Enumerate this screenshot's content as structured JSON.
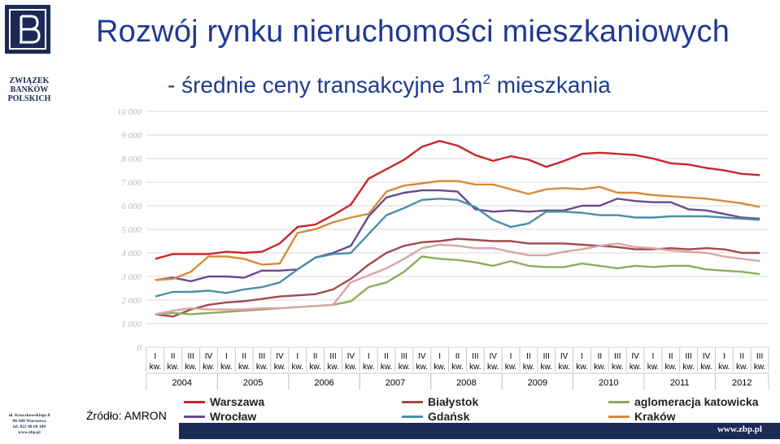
{
  "header": {
    "title": "Rozwój rynku nieruchomości mieszkaniowych",
    "subtitle_pre": "- średnie ceny transakcyjne 1m",
    "subtitle_sup": "2",
    "subtitle_post": " mieszkania"
  },
  "sidebar": {
    "org_lines": [
      "ZWIĄZEK",
      "BANKÓW",
      "POLSKICH"
    ],
    "address_lines": [
      "ul. Kruczkowskiego 8",
      "00-380 Warszawa",
      "tel. 022 48 68 180",
      "www.zbp.pl"
    ]
  },
  "source": "Źródło: AMRON",
  "footer": {
    "url": "www.zbp.pl"
  },
  "colors": {
    "brand": "#1b2a55",
    "title": "#1f3a93"
  },
  "chart_data": {
    "type": "line",
    "ylim": [
      0,
      10000
    ],
    "yticks": [
      0,
      1000,
      2000,
      3000,
      4000,
      5000,
      6000,
      7000,
      8000,
      9000,
      10000
    ],
    "ytick_labels": [
      "0",
      "1 000",
      "2 000",
      "3 000",
      "4 000",
      "5 000",
      "6 000",
      "7 000",
      "8 000",
      "9 000",
      "10 000"
    ],
    "grid": true,
    "legend_position": "bottom",
    "x_quarters": [
      "I kw.",
      "II kw.",
      "III kw.",
      "IV kw.",
      "I kw.",
      "II kw.",
      "III kw.",
      "IV kw.",
      "I kw.",
      "II kw.",
      "III kw.",
      "IV kw.",
      "I kw.",
      "II kw.",
      "III kw.",
      "IV kw.",
      "I kw.",
      "II kw.",
      "III kw.",
      "IV kw.",
      "I kw.",
      "II kw.",
      "III kw.",
      "IV kw.",
      "I kw.",
      "II kw.",
      "III kw.",
      "IV kw.",
      "I kw.",
      "II kw.",
      "III kw.",
      "IV kw.",
      "I kw.",
      "II kw.",
      "III kw."
    ],
    "years": [
      {
        "label": "2004",
        "start": 0,
        "count": 4
      },
      {
        "label": "2005",
        "start": 4,
        "count": 4
      },
      {
        "label": "2006",
        "start": 8,
        "count": 4
      },
      {
        "label": "2007",
        "start": 12,
        "count": 4
      },
      {
        "label": "2008",
        "start": 16,
        "count": 4
      },
      {
        "label": "2009",
        "start": 20,
        "count": 4
      },
      {
        "label": "2010",
        "start": 24,
        "count": 4
      },
      {
        "label": "2011",
        "start": 28,
        "count": 4
      },
      {
        "label": "2012",
        "start": 32,
        "count": 3
      }
    ],
    "series": [
      {
        "name": "Warszawa",
        "color": "#c8262c",
        "values": [
          3750,
          3950,
          3950,
          3950,
          4050,
          4000,
          4050,
          4400,
          5100,
          5200,
          5600,
          6050,
          7150,
          7550,
          7950,
          8500,
          8750,
          8550,
          8150,
          7900,
          8100,
          7950,
          7650,
          7900,
          8200,
          8250,
          8200,
          8150,
          8000,
          7800,
          7750,
          7600,
          7500,
          7350,
          7300
        ]
      },
      {
        "name": "Wrocław",
        "color": "#6b4a8e",
        "values": [
          2850,
          2950,
          2800,
          3000,
          3000,
          2950,
          3250,
          3250,
          3300,
          3800,
          4000,
          4300,
          5550,
          6350,
          6550,
          6650,
          6650,
          6600,
          5850,
          5750,
          5800,
          5750,
          5800,
          5800,
          6000,
          6000,
          6300,
          6200,
          6150,
          6150,
          5850,
          5800,
          5650,
          5500,
          5450
        ]
      },
      {
        "name": "Białystok",
        "color": "#a24a4a",
        "values": [
          1400,
          1300,
          1600,
          1800,
          1900,
          1950,
          2050,
          2150,
          2200,
          2250,
          2450,
          2900,
          3500,
          4000,
          4300,
          4450,
          4500,
          4600,
          4550,
          4500,
          4500,
          4400,
          4400,
          4400,
          4350,
          4300,
          4250,
          4150,
          4150,
          4200,
          4150,
          4200,
          4150,
          4000,
          4000
        ]
      },
      {
        "name": "Gdańsk",
        "color": "#4a8ea8",
        "values": [
          2150,
          2350,
          2350,
          2400,
          2300,
          2450,
          2550,
          2750,
          3300,
          3800,
          3950,
          4000,
          4800,
          5600,
          5900,
          6250,
          6300,
          6250,
          5950,
          5400,
          5100,
          5250,
          5750,
          5750,
          5700,
          5600,
          5600,
          5500,
          5500,
          5550,
          5550,
          5550,
          5500,
          5450,
          5400
        ]
      },
      {
        "name": "aglomeracja katowicka",
        "color": "#8aae5a",
        "values": [
          1400,
          1450,
          1400,
          1450,
          1500,
          1550,
          1600,
          1650,
          1700,
          1750,
          1800,
          1950,
          2550,
          2750,
          3200,
          3850,
          3750,
          3700,
          3600,
          3450,
          3650,
          3450,
          3400,
          3400,
          3550,
          3450,
          3350,
          3450,
          3400,
          3450,
          3450,
          3300,
          3250,
          3200,
          3100
        ]
      },
      {
        "name": "Kraków",
        "color": "#d88a3a",
        "values": [
          2850,
          2900,
          3200,
          3850,
          3850,
          3750,
          3500,
          3550,
          4850,
          5000,
          5300,
          5500,
          5650,
          6600,
          6850,
          6950,
          7050,
          7050,
          6900,
          6900,
          6700,
          6500,
          6700,
          6750,
          6700,
          6800,
          6550,
          6550,
          6450,
          6400,
          6350,
          6300,
          6200,
          6100,
          5950
        ]
      },
      {
        "name": "Kraków (light)",
        "color": "#d9a4a8",
        "values": [
          1400,
          1550,
          1650,
          1600,
          1600,
          1600,
          1650,
          1650,
          1700,
          1750,
          1800,
          2750,
          3050,
          3350,
          3750,
          4200,
          4350,
          4300,
          4200,
          4200,
          4050,
          3900,
          3900,
          4050,
          4150,
          4300,
          4400,
          4250,
          4200,
          4100,
          4050,
          4000,
          3850,
          3750,
          3650
        ]
      }
    ]
  },
  "legend": [
    {
      "label": "Warszawa",
      "color": "#c8262c"
    },
    {
      "label": "Białystok",
      "color": "#a24a4a"
    },
    {
      "label": "aglomeracja katowicka",
      "color": "#8aae5a"
    },
    {
      "label": "Wrocław",
      "color": "#6b4a8e"
    },
    {
      "label": "Gdańsk",
      "color": "#4a8ea8"
    },
    {
      "label": "Kraków",
      "color": "#d88a3a"
    }
  ]
}
